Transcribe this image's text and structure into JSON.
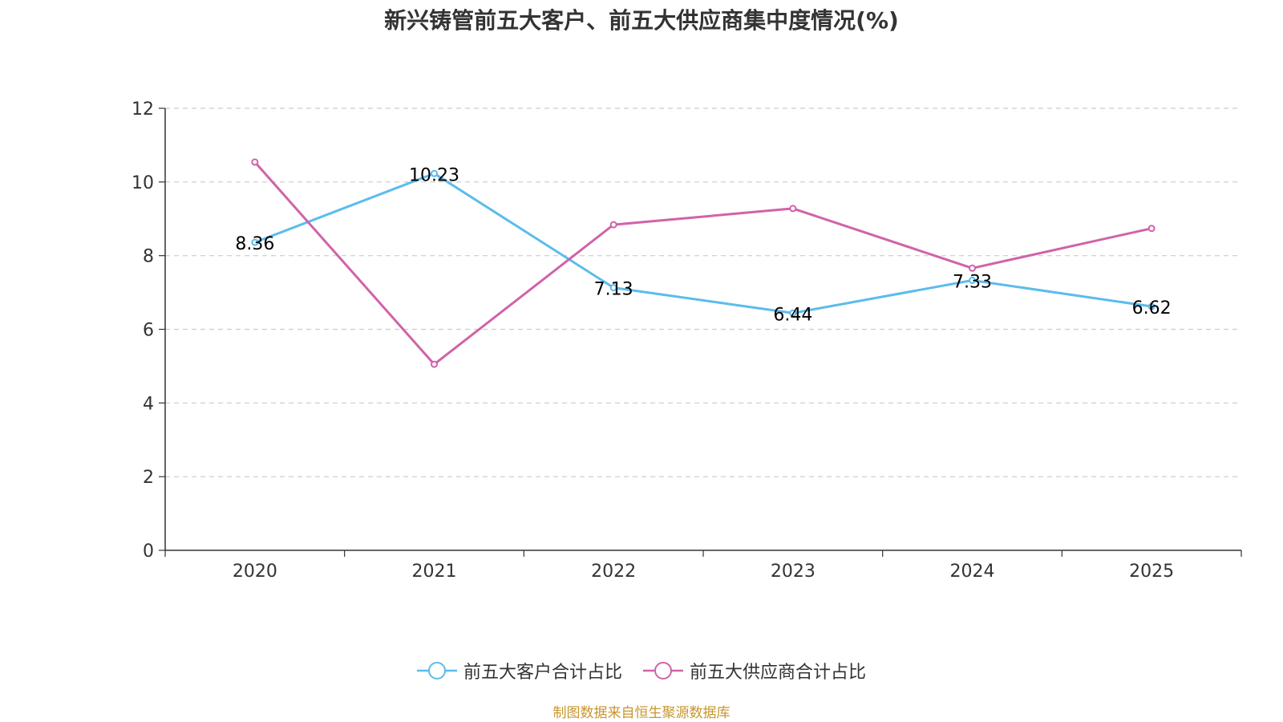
{
  "chart_data": {
    "type": "line",
    "title": "新兴铸管前五大客户、前五大供应商集中度情况(%)",
    "categories": [
      "2020",
      "2021",
      "2022",
      "2023",
      "2024",
      "2025"
    ],
    "ylim": [
      0,
      12
    ],
    "yticks": [
      0,
      2,
      4,
      6,
      8,
      10,
      12
    ],
    "grid": true,
    "legend_position": "bottom",
    "series": [
      {
        "name": "前五大客户合计占比",
        "color": "#5bbcec",
        "values": [
          8.36,
          10.23,
          7.13,
          6.44,
          7.33,
          6.62
        ],
        "labels": [
          "8.36",
          "10.23",
          "7.13",
          "6.44",
          "7.33",
          "6.62"
        ],
        "show_labels": true
      },
      {
        "name": "前五大供应商合计占比",
        "color": "#d063a8",
        "values": [
          10.54,
          5.05,
          8.84,
          9.28,
          7.66,
          8.74
        ],
        "show_labels": false
      }
    ],
    "source": "制图数据来自恒生聚源数据库"
  }
}
